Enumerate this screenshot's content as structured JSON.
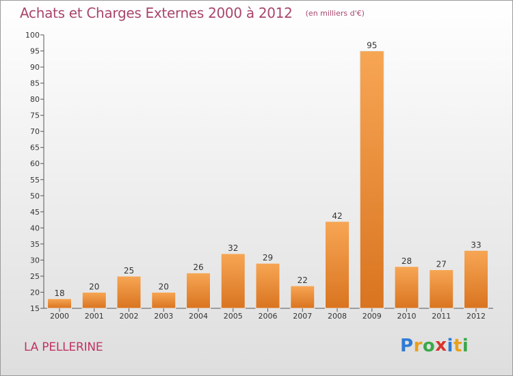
{
  "chart_data": {
    "type": "bar",
    "title": "Achats et Charges Externes 2000 à 2012",
    "subtitle": "(en milliers d'€)",
    "categories": [
      "2000",
      "2001",
      "2002",
      "2003",
      "2004",
      "2005",
      "2006",
      "2007",
      "2008",
      "2009",
      "2010",
      "2011",
      "2012"
    ],
    "values": [
      18,
      20,
      25,
      20,
      26,
      32,
      29,
      22,
      42,
      95,
      28,
      27,
      33
    ],
    "ylim": [
      15,
      100
    ],
    "yticks": [
      15,
      20,
      25,
      30,
      35,
      40,
      45,
      50,
      55,
      60,
      65,
      70,
      75,
      80,
      85,
      90,
      95,
      100
    ],
    "grid": false,
    "bar_color": "#f09a45"
  },
  "commune": "LA PELLERINE",
  "logo": {
    "letters": [
      "P",
      "r",
      "o",
      "x",
      "i",
      "t",
      "i"
    ],
    "colors": [
      "#2e7bd6",
      "#e8a11c",
      "#3aa84a",
      "#d8342c",
      "#2e7bd6",
      "#e8a11c",
      "#3aa84a"
    ]
  }
}
